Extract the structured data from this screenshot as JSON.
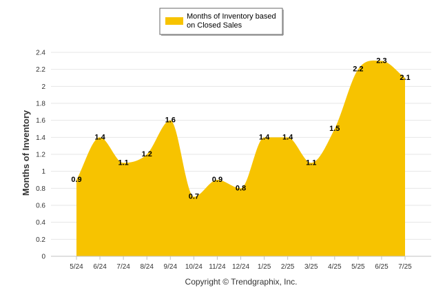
{
  "chart_data": {
    "type": "area",
    "categories": [
      "5/24",
      "6/24",
      "7/24",
      "8/24",
      "9/24",
      "10/24",
      "11/24",
      "12/24",
      "1/25",
      "2/25",
      "3/25",
      "4/25",
      "5/25",
      "6/25",
      "7/25"
    ],
    "series": [
      {
        "name": "Months of Inventory based on Closed Sales",
        "values": [
          0.9,
          1.4,
          1.1,
          1.2,
          1.6,
          0.7,
          0.9,
          0.8,
          1.4,
          1.4,
          1.1,
          1.5,
          2.2,
          2.3,
          2.1
        ],
        "color": "#F7C300"
      }
    ],
    "data_labels": [
      "0.9",
      "1.4",
      "1.1",
      "1.2",
      "1.6",
      "0.7",
      "0.9",
      "0.8",
      "1.4",
      "1.4",
      "1.1",
      "1.5",
      "2.2",
      "2.3",
      "2.1"
    ],
    "ylabel": "Months of Inventory",
    "xlabel": "",
    "ylim": [
      0,
      2.4
    ],
    "yticks": [
      "0",
      "0.2",
      "0.4",
      "0.6",
      "0.8",
      "1",
      "1.2",
      "1.4",
      "1.6",
      "1.8",
      "2",
      "2.2",
      "2.4"
    ],
    "legend": {
      "line1": "Months of Inventory based",
      "line2": "on Closed Sales",
      "placement": "top-center"
    },
    "grid": true,
    "grid_color": "#E6E6E6",
    "copyright": "Copyright © Trendgraphix, Inc."
  }
}
